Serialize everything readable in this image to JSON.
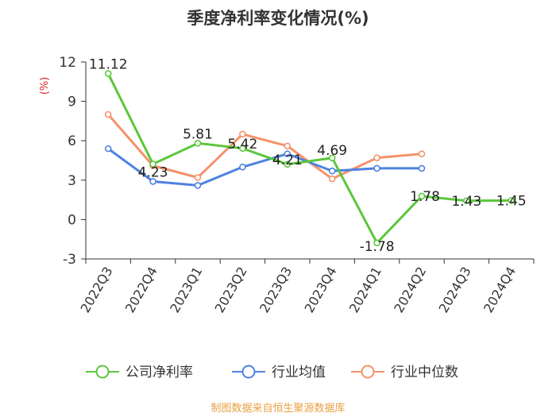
{
  "chart_data": {
    "type": "line",
    "title": "季度净利率变化情况(%)",
    "unit": "(%)",
    "categories": [
      "2022Q3",
      "2022Q4",
      "2023Q1",
      "2023Q2",
      "2023Q3",
      "2023Q4",
      "2024Q1",
      "2024Q2",
      "2024Q3",
      "2024Q4"
    ],
    "ylim": [
      -3,
      12
    ],
    "yticks": [
      -3,
      0,
      3,
      6,
      9,
      12
    ],
    "series": [
      {
        "name": "公司净利率",
        "color": "#5cc73c",
        "values": [
          11.12,
          4.23,
          5.81,
          5.42,
          4.21,
          4.69,
          -1.78,
          1.78,
          1.43,
          1.45
        ],
        "labels": [
          "11.12",
          "4.23",
          "5.81",
          "5.42",
          "4.21",
          "4.69",
          "-1.78",
          "1.78",
          "1.43",
          "1.45"
        ]
      },
      {
        "name": "行业均值",
        "color": "#4f82e0",
        "values": [
          5.4,
          2.9,
          2.6,
          4.0,
          5.0,
          3.7,
          3.9,
          3.9,
          null,
          null
        ]
      },
      {
        "name": "行业中位数",
        "color": "#f5926a",
        "values": [
          8.0,
          4.1,
          3.2,
          6.5,
          5.6,
          3.1,
          4.7,
          5.0,
          null,
          null
        ]
      }
    ],
    "legend_position": "bottom",
    "grid": false
  },
  "source": "制图数据来自恒生聚源数据库"
}
